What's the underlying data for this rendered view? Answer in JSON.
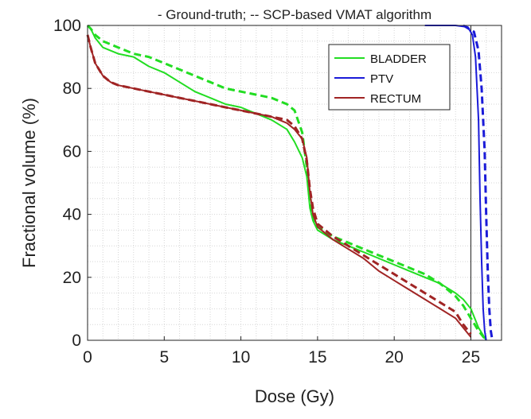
{
  "chart_data": {
    "type": "line",
    "title": "- Ground-truth; -- SCP-based VMAT algorithm",
    "xlabel": "Dose (Gy)",
    "ylabel": "Fractional volume (%)",
    "xlim": [
      0,
      27
    ],
    "ylim": [
      0,
      100
    ],
    "xticks": [
      0,
      5,
      10,
      15,
      20,
      25
    ],
    "yticks": [
      0,
      20,
      40,
      60,
      80,
      100
    ],
    "xtick_labels": [
      "0",
      "5",
      "10",
      "15",
      "20",
      "25"
    ],
    "ytick_labels": [
      "0",
      "20",
      "40",
      "60",
      "80",
      "100"
    ],
    "grid": "dotted, minor",
    "legend_position": "top-right",
    "vertical_reference_line_x": 25,
    "legend": [
      {
        "label": "BLADDER",
        "color": "#22dd22"
      },
      {
        "label": "PTV",
        "color": "#1a1ad8"
      },
      {
        "label": "RECTUM",
        "color": "#a02424"
      }
    ],
    "series": [
      {
        "name": "BLADDER",
        "style": "solid",
        "color": "#22dd22",
        "x": [
          0,
          0.2,
          0.5,
          1,
          2,
          3,
          4,
          5,
          6,
          7,
          8,
          9,
          10,
          11,
          12,
          13,
          13.5,
          14,
          14.3,
          14.5,
          14.7,
          15,
          16,
          17,
          18,
          19,
          20,
          21,
          22,
          23,
          24,
          24.5,
          25,
          25.5,
          26
        ],
        "y": [
          100,
          99,
          96,
          93,
          91,
          90,
          87,
          85,
          82,
          79,
          77,
          75,
          74,
          72,
          70,
          67,
          63,
          58,
          52,
          42,
          38,
          35,
          32,
          30,
          28,
          26,
          24,
          22,
          20,
          18,
          15,
          13,
          10,
          4,
          0
        ]
      },
      {
        "name": "BLADDER",
        "style": "dashed",
        "color": "#22dd22",
        "x": [
          0,
          0.2,
          0.5,
          1,
          2,
          3,
          4,
          5,
          6,
          7,
          8,
          9,
          10,
          11,
          12,
          13,
          13.5,
          14,
          14.3,
          14.5,
          14.7,
          15,
          16,
          17,
          18,
          19,
          20,
          21,
          22,
          23,
          24,
          24.5,
          25,
          25.5,
          26
        ],
        "y": [
          100,
          99,
          97,
          95,
          93,
          91,
          90,
          88,
          86,
          84,
          82,
          80,
          79,
          78,
          77,
          75,
          73,
          66,
          55,
          44,
          39,
          36,
          33,
          31,
          29,
          27,
          25,
          23,
          21,
          18,
          14,
          11,
          7,
          3,
          0
        ]
      },
      {
        "name": "RECTUM",
        "style": "solid",
        "color": "#a02424",
        "x": [
          0,
          0.2,
          0.5,
          1,
          1.5,
          2,
          3,
          4,
          5,
          6,
          7,
          8,
          9,
          10,
          11,
          12,
          13,
          13.5,
          14,
          14.3,
          14.5,
          14.7,
          15,
          16,
          17,
          18,
          19,
          20,
          21,
          22,
          23,
          24,
          24.5,
          25
        ],
        "y": [
          97,
          93,
          88,
          84,
          82,
          81,
          80,
          79,
          78,
          77,
          76,
          75,
          74,
          73,
          72,
          71,
          69,
          67,
          64,
          58,
          47,
          40,
          36,
          32,
          29,
          26,
          22,
          19,
          16,
          13,
          10,
          7,
          4,
          1
        ]
      },
      {
        "name": "RECTUM",
        "style": "dashed",
        "color": "#a02424",
        "x": [
          0,
          0.2,
          0.5,
          1,
          1.5,
          2,
          3,
          4,
          5,
          6,
          7,
          8,
          9,
          10,
          11,
          12,
          13,
          13.5,
          14,
          14.3,
          14.5,
          14.7,
          15,
          16,
          17,
          18,
          19,
          20,
          21,
          22,
          23,
          24,
          24.5,
          25
        ],
        "y": [
          97,
          93,
          88,
          84,
          82,
          81,
          80,
          79,
          78,
          77,
          76,
          75,
          74,
          73,
          72,
          71,
          70,
          68,
          64,
          57,
          48,
          42,
          37,
          33,
          30,
          27,
          24,
          21,
          18,
          15,
          12,
          9,
          5,
          2
        ]
      },
      {
        "name": "PTV",
        "style": "solid",
        "color": "#1a1ad8",
        "x": [
          22,
          24,
          24.8,
          25.1,
          25.3,
          25.5,
          25.6,
          25.7,
          25.8,
          25.9,
          26
        ],
        "y": [
          100,
          100,
          99.5,
          97,
          90,
          70,
          45,
          25,
          10,
          3,
          0
        ]
      },
      {
        "name": "PTV",
        "style": "dashed",
        "color": "#1a1ad8",
        "x": [
          24.5,
          25.2,
          25.5,
          25.7,
          25.9,
          26.0,
          26.1,
          26.2,
          26.3,
          26.4
        ],
        "y": [
          100,
          98,
          92,
          80,
          60,
          40,
          22,
          10,
          3,
          0
        ]
      }
    ]
  }
}
